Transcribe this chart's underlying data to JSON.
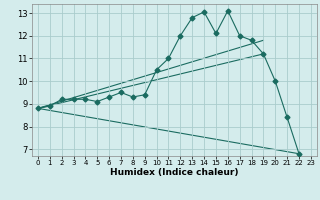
{
  "xlabel": "Humidex (Indice chaleur)",
  "bg_color": "#d4ecec",
  "grid_color": "#aacccc",
  "line_color": "#1a6b60",
  "xlim": [
    -0.5,
    23.5
  ],
  "ylim": [
    6.7,
    13.4
  ],
  "xticks": [
    0,
    1,
    2,
    3,
    4,
    5,
    6,
    7,
    8,
    9,
    10,
    11,
    12,
    13,
    14,
    15,
    16,
    17,
    18,
    19,
    20,
    21,
    22,
    23
  ],
  "yticks": [
    7,
    8,
    9,
    10,
    11,
    12,
    13
  ],
  "main_line": {
    "x": [
      0,
      1,
      2,
      3,
      4,
      5,
      6,
      7,
      8,
      9,
      10,
      11,
      12,
      13,
      14,
      15,
      16,
      17,
      18,
      19,
      20,
      21,
      22
    ],
    "y": [
      8.8,
      8.9,
      9.2,
      9.2,
      9.2,
      9.1,
      9.3,
      9.5,
      9.3,
      9.4,
      10.5,
      11.0,
      12.0,
      12.8,
      13.05,
      12.1,
      13.1,
      12.0,
      11.8,
      11.2,
      10.0,
      8.4,
      6.8
    ]
  },
  "extra_lines": [
    {
      "x": [
        0,
        19
      ],
      "y": [
        8.8,
        11.2
      ]
    },
    {
      "x": [
        0,
        19
      ],
      "y": [
        8.8,
        11.8
      ]
    },
    {
      "x": [
        0,
        22
      ],
      "y": [
        8.8,
        6.8
      ]
    }
  ]
}
